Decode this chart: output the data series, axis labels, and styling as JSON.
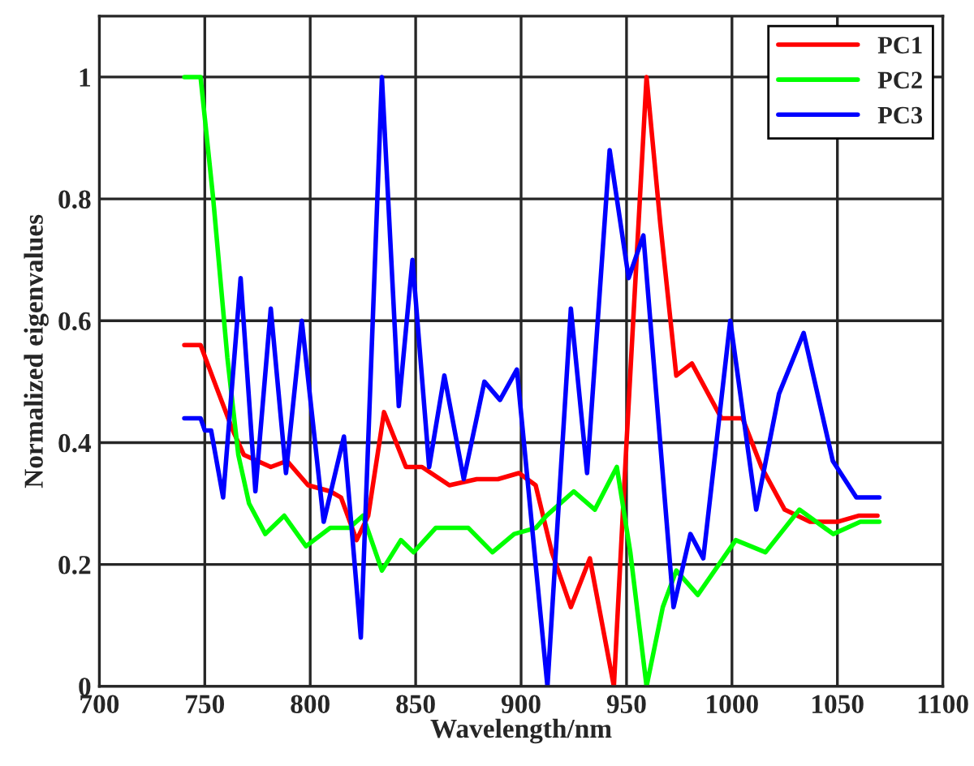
{
  "chart_data": {
    "type": "line",
    "xlabel": "Wavelength/nm",
    "ylabel": "Normalized eigenvalues",
    "xlim": [
      700,
      1100
    ],
    "xticks": [
      700,
      750,
      800,
      850,
      900,
      950,
      1000,
      1050,
      1100
    ],
    "ylim": [
      0,
      1.1
    ],
    "yticks": [
      0,
      0.2,
      0.4,
      0.6,
      0.8,
      1
    ],
    "grid": true,
    "legend": "top right",
    "series": [
      {
        "name": "PC1",
        "color": "#ff0000",
        "x": [
          740.3,
          748,
          755.6,
          763.3,
          768.5,
          781.3,
          789,
          799,
          809.5,
          814.6,
          822,
          827.5,
          835,
          845.4,
          853,
          866,
          879,
          889,
          899,
          906.9,
          914.6,
          923.6,
          932.6,
          944,
          950,
          959.5,
          966,
          973.6,
          981,
          995,
          1005,
          1014,
          1025,
          1037,
          1050,
          1060,
          1069
        ],
        "values": [
          0.56,
          0.56,
          0.49,
          0.42,
          0.38,
          0.36,
          0.37,
          0.33,
          0.32,
          0.31,
          0.24,
          0.28,
          0.45,
          0.36,
          0.36,
          0.33,
          0.34,
          0.34,
          0.35,
          0.33,
          0.22,
          0.13,
          0.21,
          0.0,
          0.4,
          1.0,
          0.76,
          0.51,
          0.53,
          0.44,
          0.44,
          0.36,
          0.29,
          0.27,
          0.27,
          0.28,
          0.28
        ]
      },
      {
        "name": "PC2",
        "color": "#00ff00",
        "x": [
          740.3,
          748,
          754,
          760.7,
          765.9,
          771,
          778.7,
          787.7,
          798,
          809.5,
          818.5,
          825,
          834,
          843,
          849,
          859.5,
          875,
          886.4,
          896.7,
          907,
          912,
          925,
          935,
          945.4,
          951.8,
          959.5,
          967.2,
          973.6,
          983.8,
          1001.8,
          1015.9,
          1032,
          1048,
          1060.9,
          1069.9
        ],
        "values": [
          1.0,
          1.0,
          0.8,
          0.54,
          0.38,
          0.3,
          0.25,
          0.28,
          0.23,
          0.26,
          0.26,
          0.28,
          0.19,
          0.24,
          0.22,
          0.26,
          0.26,
          0.22,
          0.25,
          0.26,
          0.28,
          0.32,
          0.29,
          0.36,
          0.22,
          0.0,
          0.13,
          0.19,
          0.15,
          0.24,
          0.22,
          0.29,
          0.25,
          0.27,
          0.27
        ]
      },
      {
        "name": "PC3",
        "color": "#0000ff",
        "x": [
          740.3,
          748,
          750,
          753,
          758.7,
          767,
          774,
          781.3,
          788.5,
          796,
          806.4,
          816,
          824,
          834,
          842,
          848.5,
          856.4,
          863.6,
          872.8,
          882.6,
          890,
          898,
          912.5,
          923.6,
          931.3,
          942,
          951,
          958,
          972.3,
          980.3,
          986.4,
          999.2,
          1011.5,
          1022.3,
          1034,
          1047.8,
          1059,
          1069.9
        ],
        "values": [
          0.44,
          0.44,
          0.42,
          0.42,
          0.31,
          0.67,
          0.32,
          0.62,
          0.35,
          0.6,
          0.27,
          0.41,
          0.08,
          1.0,
          0.46,
          0.7,
          0.36,
          0.51,
          0.34,
          0.5,
          0.47,
          0.52,
          0.0,
          0.62,
          0.35,
          0.88,
          0.67,
          0.74,
          0.13,
          0.25,
          0.21,
          0.6,
          0.29,
          0.48,
          0.58,
          0.37,
          0.31,
          0.31
        ]
      }
    ]
  }
}
